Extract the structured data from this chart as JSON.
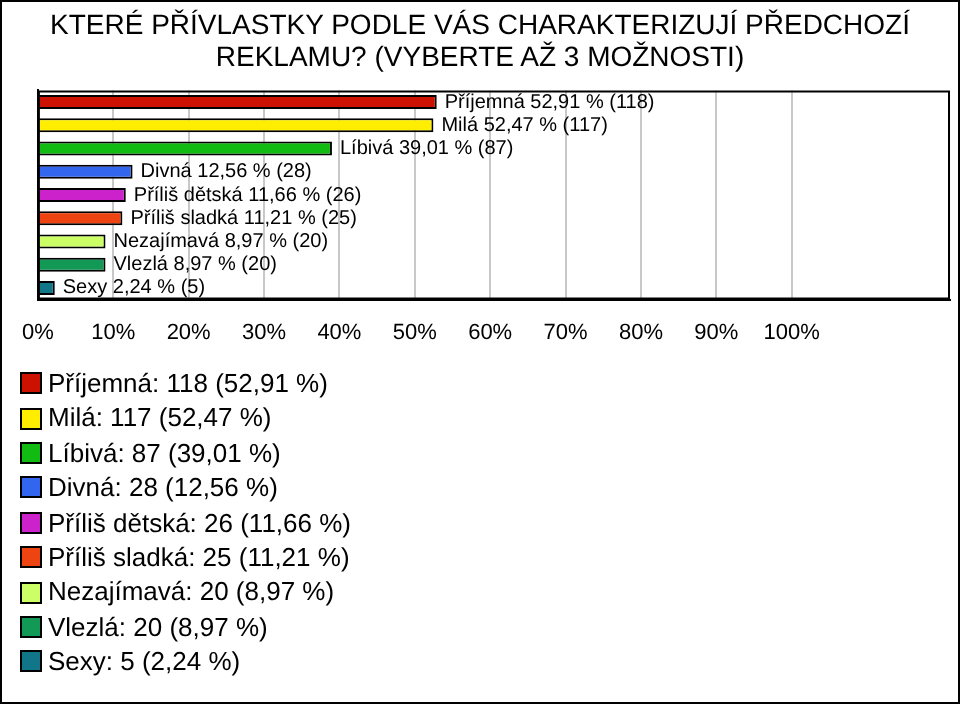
{
  "chart_data": {
    "type": "bar",
    "orientation": "horizontal",
    "stacked": true,
    "title": "KTERÉ PŘÍVLASTKY PODLE VÁS CHARAKTERIZUJÍ PŘEDCHOZÍ REKLAMU? (VYBERTE AŽ 3 MOŽNOSTI)",
    "categories": [
      null,
      null,
      null,
      null,
      null,
      null,
      null,
      null,
      null
    ],
    "series": [
      {
        "name": "Příjemná: 118 (52,91 %)",
        "color": "#cc1100",
        "values": [
          52.91,
          null,
          null,
          null,
          null,
          null,
          null,
          null,
          null
        ],
        "value_labels": [
          "Příjemná 52,91 % (118)",
          null,
          null,
          null,
          null,
          null,
          null,
          null,
          null
        ]
      },
      {
        "name": "Milá: 117 (52,47 %)",
        "color": "#ffee00",
        "values": [
          null,
          52.47,
          null,
          null,
          null,
          null,
          null,
          null,
          null
        ],
        "value_labels": [
          null,
          "Milá 52,47 % (117)",
          null,
          null,
          null,
          null,
          null,
          null,
          null
        ]
      },
      {
        "name": "Líbivá: 87 (39,01 %)",
        "color": "#11bb11",
        "values": [
          null,
          null,
          39.01,
          null,
          null,
          null,
          null,
          null,
          null
        ],
        "value_labels": [
          null,
          null,
          "Líbivá 39,01 % (87)",
          null,
          null,
          null,
          null,
          null,
          null
        ]
      },
      {
        "name": "Divná: 28 (12,56 %)",
        "color": "#3366ee",
        "values": [
          null,
          null,
          null,
          12.56,
          null,
          null,
          null,
          null,
          null
        ],
        "value_labels": [
          null,
          null,
          null,
          "Divná 12,56 % (28)",
          null,
          null,
          null,
          null,
          null
        ]
      },
      {
        "name": "Příliš dětská: 26 (11,66 %)",
        "color": "#cc22cc",
        "values": [
          null,
          null,
          null,
          null,
          11.66,
          null,
          null,
          null,
          null
        ],
        "value_labels": [
          null,
          null,
          null,
          null,
          "Příliš dětská 11,66 % (26)",
          null,
          null,
          null,
          null
        ]
      },
      {
        "name": "Příliš sladká: 25 (11,21 %)",
        "color": "#ee4411",
        "values": [
          null,
          null,
          null,
          null,
          null,
          11.21,
          null,
          null,
          null
        ],
        "value_labels": [
          null,
          null,
          null,
          null,
          null,
          "Příliš sladká 11,21 % (25)",
          null,
          null,
          null
        ]
      },
      {
        "name": "Nezajímavá: 20 (8,97 %)",
        "color": "#ccff66",
        "values": [
          null,
          null,
          null,
          null,
          null,
          null,
          8.97,
          null,
          null
        ],
        "value_labels": [
          null,
          null,
          null,
          null,
          null,
          null,
          "Nezajímavá 8,97 % (20)",
          null,
          null
        ]
      },
      {
        "name": "Vlezlá: 20 (8,97 %)",
        "color": "#119955",
        "values": [
          null,
          null,
          null,
          null,
          null,
          null,
          null,
          8.97,
          null
        ],
        "value_labels": [
          null,
          null,
          null,
          null,
          null,
          null,
          null,
          "Vlezlá 8,97 % (20)",
          null
        ]
      },
      {
        "name": "Sexy: 5 (2,24 %)",
        "color": "#117788",
        "values": [
          null,
          null,
          null,
          null,
          null,
          null,
          null,
          null,
          2.24
        ],
        "value_labels": [
          null,
          null,
          null,
          null,
          null,
          null,
          null,
          null,
          "Sexy 2,24 % (5)"
        ]
      }
    ],
    "xlim": [
      0,
      121
    ],
    "xticks": [
      {
        "value": 0,
        "label": "0%"
      },
      {
        "value": 10,
        "label": "10%"
      },
      {
        "value": 20,
        "label": "20%"
      },
      {
        "value": 30,
        "label": "30%"
      },
      {
        "value": 40,
        "label": "40%"
      },
      {
        "value": 50,
        "label": "50%"
      },
      {
        "value": 60,
        "label": "60%"
      },
      {
        "value": 70,
        "label": "70%"
      },
      {
        "value": 80,
        "label": "80%"
      },
      {
        "value": 90,
        "label": "90%"
      },
      {
        "value": 100,
        "label": "100%"
      }
    ],
    "grid": "x",
    "legend": "bottom"
  }
}
